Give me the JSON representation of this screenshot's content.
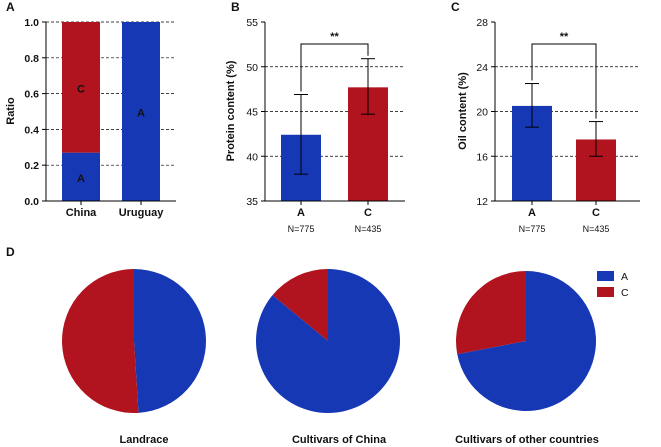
{
  "panels": {
    "A": "A",
    "B": "B",
    "C": "C",
    "D": "D"
  },
  "colors": {
    "A": "#1638b4",
    "C": "#b1141e"
  },
  "chart_data": [
    {
      "id": "A",
      "type": "bar",
      "stacked": true,
      "categories": [
        "China",
        "Uruguay"
      ],
      "series": [
        {
          "name": "A",
          "values": [
            0.27,
            1.0
          ]
        },
        {
          "name": "C",
          "values": [
            0.73,
            0.0
          ]
        }
      ],
      "ylabel": "Ratio",
      "ylim": [
        0,
        1.0
      ],
      "yticks": [
        "0.0",
        "0.2",
        "0.4",
        "0.6",
        "0.8",
        "1.0"
      ],
      "grid": true
    },
    {
      "id": "B",
      "type": "bar",
      "categories": [
        "A",
        "C"
      ],
      "values": [
        42.4,
        47.7
      ],
      "errors_low": [
        38.0,
        44.7
      ],
      "errors_high": [
        46.9,
        50.9
      ],
      "n_labels": [
        "N=775",
        "N=435"
      ],
      "ylabel": "Protein content  (%)",
      "ylim": [
        35,
        55
      ],
      "yticks": [
        "35",
        "40",
        "45",
        "50",
        "55"
      ],
      "significance": "**",
      "grid": true
    },
    {
      "id": "C",
      "type": "bar",
      "categories": [
        "A",
        "C"
      ],
      "values": [
        20.5,
        17.5
      ],
      "errors_low": [
        18.6,
        16.0
      ],
      "errors_high": [
        22.5,
        19.1
      ],
      "n_labels": [
        "N=775",
        "N=435"
      ],
      "ylabel": "Oil content  (%)",
      "ylim": [
        12,
        28
      ],
      "yticks": [
        "12",
        "16",
        "20",
        "24",
        "28"
      ],
      "significance": "**",
      "grid": true
    },
    {
      "id": "D",
      "type": "pie",
      "legend": [
        "A",
        "C"
      ],
      "legend_position": "top-right",
      "pies": [
        {
          "title": "Landrace",
          "A": 0.49,
          "C": 0.51
        },
        {
          "title": "Cultivars of China",
          "A": 0.86,
          "C": 0.14
        },
        {
          "title": "Cultivars of other countries",
          "A": 0.72,
          "C": 0.28
        }
      ]
    }
  ]
}
